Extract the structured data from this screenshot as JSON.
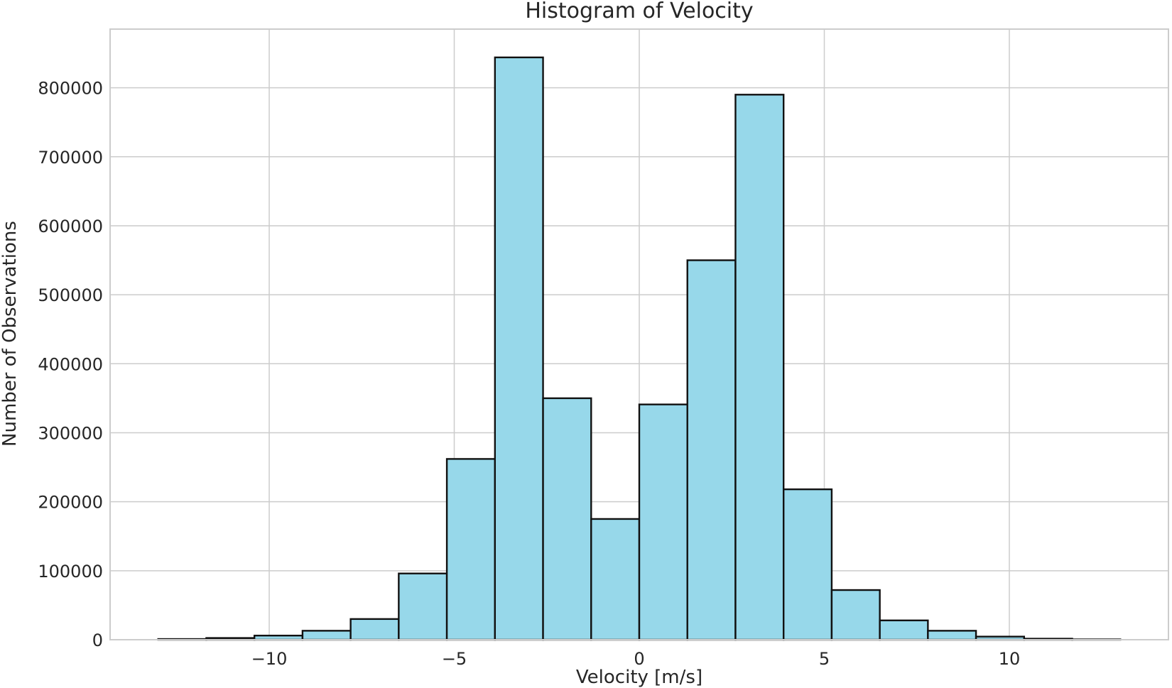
{
  "chart_data": {
    "type": "bar",
    "title": "Histogram of Velocity",
    "xlabel": "Velocity [m/s]",
    "ylabel": "Number of Observations",
    "bin_edges": [
      -13.0,
      -11.7,
      -10.4,
      -9.1,
      -7.8,
      -6.5,
      -5.2,
      -3.9,
      -2.6,
      -1.3,
      0.0,
      1.3,
      2.6,
      3.9,
      5.2,
      6.5,
      7.8,
      9.1,
      10.4,
      11.7,
      13.0
    ],
    "values": [
      1000,
      2500,
      6000,
      13000,
      30000,
      96000,
      262000,
      844000,
      350000,
      175000,
      341000,
      550000,
      790000,
      218000,
      72000,
      28000,
      13000,
      4500,
      1500,
      500
    ],
    "xlim": [
      -14.3,
      14.3
    ],
    "ylim": [
      0,
      885000
    ],
    "xticks": [
      -10,
      -5,
      0,
      5,
      10
    ],
    "xtick_labels": [
      "−10",
      "−5",
      "0",
      "5",
      "10"
    ],
    "yticks": [
      0,
      100000,
      200000,
      300000,
      400000,
      500000,
      600000,
      700000,
      800000
    ],
    "ytick_labels": [
      "0",
      "100000",
      "200000",
      "300000",
      "400000",
      "500000",
      "600000",
      "700000",
      "800000"
    ],
    "grid": true,
    "bar_color": "#97d8ea",
    "edge_color": "#111111"
  }
}
